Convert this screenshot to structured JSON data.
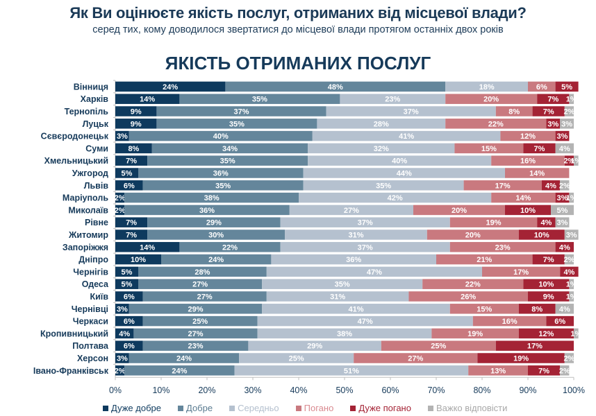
{
  "header": {
    "title": "Як Ви оцінюєте якість послуг, отриманих від місцевої влади?",
    "subtitle": "серед тих, кому доводилося звертатися до місцевої влади протягом останніх двох років"
  },
  "chart_data": {
    "type": "bar",
    "orientation": "horizontal",
    "stacked": true,
    "title": "ЯКІСТЬ ОТРИМАНИХ ПОСЛУГ",
    "xlabel": "",
    "ylabel": "",
    "xlim": [
      0,
      100
    ],
    "x_ticks": [
      "0%",
      "10%",
      "20%",
      "30%",
      "40%",
      "50%",
      "60%",
      "70%",
      "80%",
      "90%",
      "100%"
    ],
    "legend_position": "bottom",
    "categories": [
      "Вінниця",
      "Харків",
      "Тернопіль",
      "Луцьк",
      "Сєвєродонецьк",
      "Суми",
      "Хмельницький",
      "Ужгород",
      "Львів",
      "Маріуполь",
      "Миколаїв",
      "Рівне",
      "Житомир",
      "Запоріжжя",
      "Дніпро",
      "Чернігів",
      "Одеса",
      "Київ",
      "Чернівці",
      "Черкаси",
      "Кропивницький",
      "Полтава",
      "Херсон",
      "Івано-Франківськ"
    ],
    "series": [
      {
        "name": "Дуже добре",
        "color": "#0e3a5e",
        "text_color": "#0e3a5e",
        "values": [
          24,
          14,
          9,
          9,
          3,
          8,
          7,
          5,
          6,
          2,
          2,
          7,
          7,
          14,
          10,
          5,
          5,
          6,
          3,
          6,
          4,
          6,
          3,
          2
        ]
      },
      {
        "name": "Добре",
        "color": "#64869b",
        "text_color": "#5a7b90",
        "values": [
          48,
          35,
          37,
          35,
          40,
          34,
          35,
          36,
          35,
          38,
          36,
          29,
          30,
          22,
          24,
          28,
          27,
          27,
          29,
          25,
          27,
          23,
          24,
          24
        ]
      },
      {
        "name": "Середньо",
        "color": "#b5c1cf",
        "text_color": "#b5c1cf",
        "values": [
          18,
          23,
          37,
          28,
          41,
          32,
          40,
          44,
          35,
          42,
          27,
          37,
          31,
          37,
          36,
          47,
          35,
          31,
          41,
          47,
          38,
          29,
          25,
          51
        ]
      },
      {
        "name": "Погано",
        "color": "#c9797f",
        "text_color": "#d98a90",
        "values": [
          6,
          20,
          8,
          22,
          12,
          15,
          16,
          14,
          17,
          14,
          20,
          19,
          20,
          23,
          21,
          17,
          22,
          26,
          15,
          16,
          19,
          25,
          27,
          13
        ]
      },
      {
        "name": "Дуже погано",
        "color": "#a42335",
        "text_color": "#a42335",
        "values": [
          5,
          7,
          7,
          3,
          3,
          7,
          2,
          0,
          4,
          3,
          10,
          4,
          10,
          4,
          7,
          4,
          10,
          9,
          8,
          6,
          12,
          17,
          19,
          7
        ]
      },
      {
        "name": "Важко відповісти",
        "color": "#b3b3b3",
        "text_color": "#a8a8a8",
        "values": [
          0,
          1,
          2,
          3,
          0,
          4,
          1,
          0,
          2,
          1,
          5,
          3,
          3,
          0,
          2,
          0,
          1,
          1,
          4,
          0,
          1,
          0,
          2,
          2
        ]
      }
    ]
  }
}
